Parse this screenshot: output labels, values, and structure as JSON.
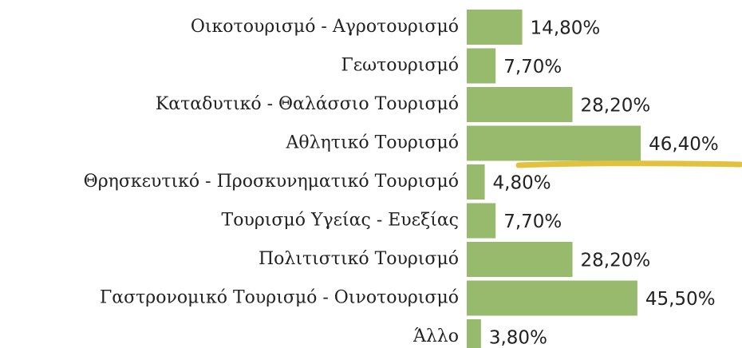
{
  "chart_data": {
    "type": "bar",
    "orientation": "horizontal",
    "categories": [
      "Οικοτουρισμό - Αγροτουρισμό",
      "Γεωτουρισμό",
      "Καταδυτικό - Θαλάσσιο Τουρισμό",
      "Αθλητικό Τουρισμό",
      "Θρησκευτικό - Προσκυνηματικό Τουρισμό",
      "Τουρισμό Υγείας - Ευεξίας",
      "Πολιτιστικό Τουρισμό",
      "Γαστρονομικό Τουρισμό - Οινοτουρισμό",
      "Άλλο"
    ],
    "values": [
      14.8,
      7.7,
      28.2,
      46.4,
      4.8,
      7.7,
      28.2,
      45.5,
      3.8
    ],
    "value_labels": [
      "14,80%",
      "7,70%",
      "28,20%",
      "46,40%",
      "4,80%",
      "7,70%",
      "28,20%",
      "45,50%",
      "3,80%"
    ],
    "color": "#98ba6c"
  }
}
